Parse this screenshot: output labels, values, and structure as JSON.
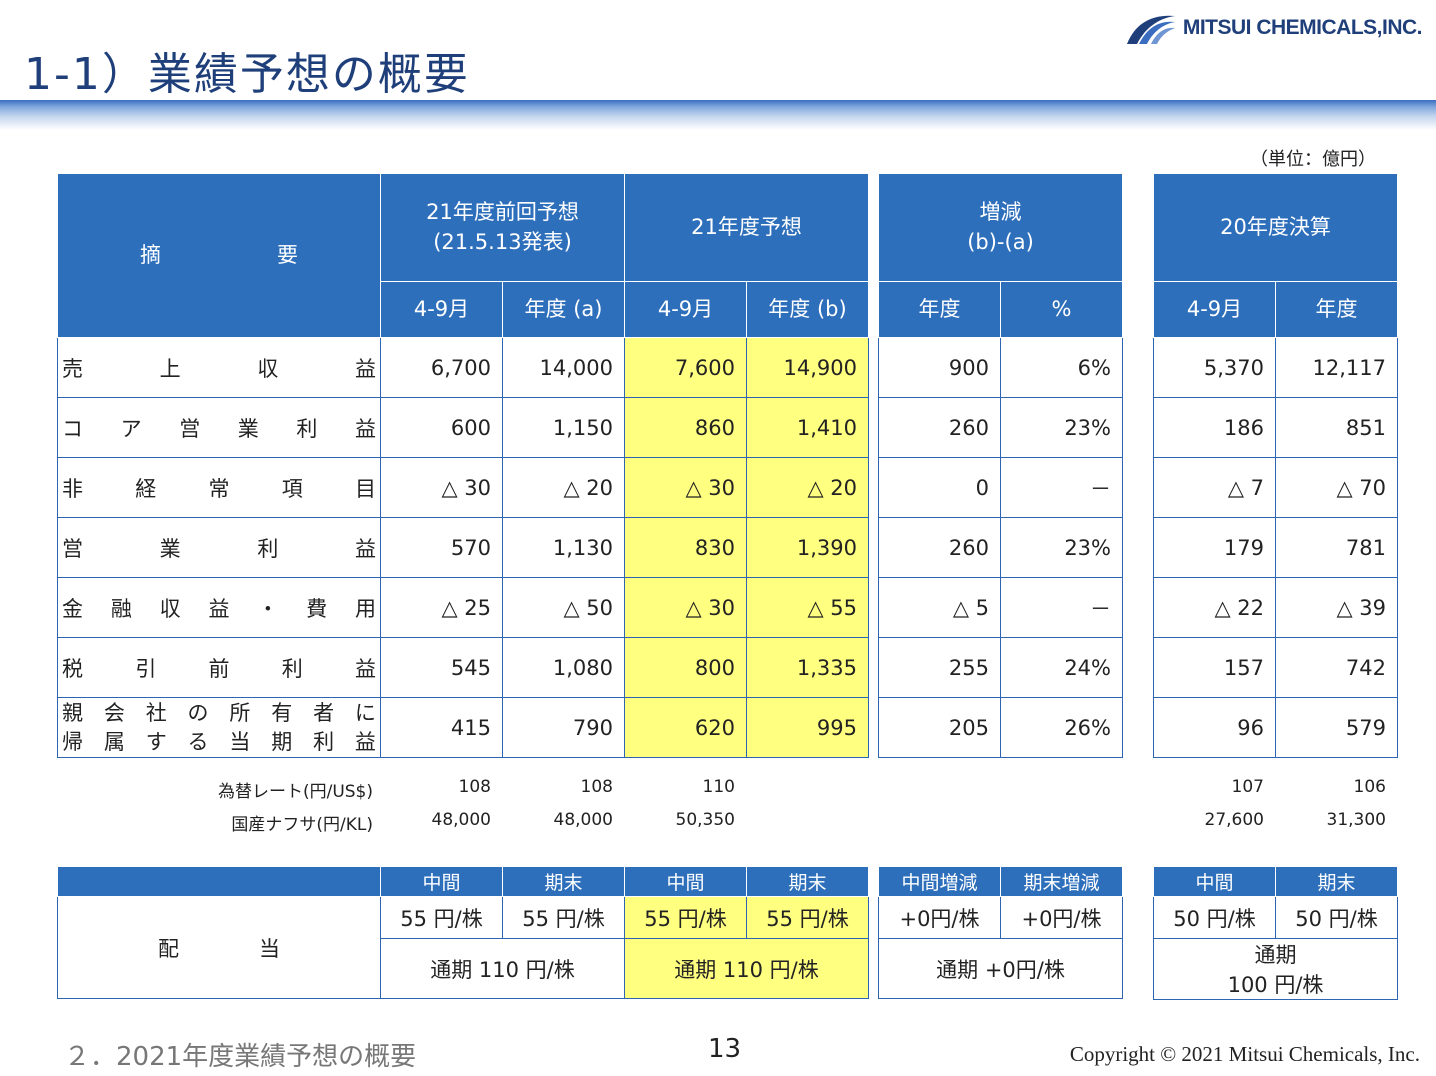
{
  "header": {
    "title": "1-1）業績予想の概要",
    "company": "MITSUI CHEMICALS,INC.",
    "unit": "（単位：億円）"
  },
  "main_table": {
    "col_item": [
      "摘",
      "要"
    ],
    "forecast_prev": "21年度前回予想",
    "forecast_prev_date": "(21.5.13発表)",
    "forecast_now": "21年度予想",
    "change": "増減",
    "change_formula": "(b)-(a)",
    "actual_prev": "20年度決算",
    "sub": [
      "4-9月",
      "年度 (a)",
      "4-9月",
      "年度 (b)",
      "年度",
      "%",
      "4-9月",
      "年度"
    ],
    "rows": [
      {
        "chars": [
          "売",
          "上",
          "収",
          "益"
        ],
        "vals": [
          "6,700",
          "14,000",
          "7,600",
          "14,900",
          "900",
          "6%",
          "5,370",
          "12,117"
        ]
      },
      {
        "chars": [
          "コ",
          "ア",
          "営",
          "業",
          "利",
          "益"
        ],
        "vals": [
          "600",
          "1,150",
          "860",
          "1,410",
          "260",
          "23%",
          "186",
          "851"
        ]
      },
      {
        "chars": [
          "非",
          "経",
          "常",
          "項",
          "目"
        ],
        "vals": [
          "△ 30",
          "△ 20",
          "△ 30",
          "△ 20",
          "0",
          "－",
          "△ 7",
          "△ 70"
        ]
      },
      {
        "chars": [
          "営",
          "業",
          "利",
          "益"
        ],
        "vals": [
          "570",
          "1,130",
          "830",
          "1,390",
          "260",
          "23%",
          "179",
          "781"
        ]
      },
      {
        "chars": [
          "金",
          "融",
          "収",
          "益",
          "・",
          "費",
          "用"
        ],
        "vals": [
          "△ 25",
          "△ 50",
          "△ 30",
          "△ 55",
          "△ 5",
          "－",
          "△ 22",
          "△ 39"
        ]
      },
      {
        "chars": [
          "税",
          "引",
          "前",
          "利",
          "益"
        ],
        "vals": [
          "545",
          "1,080",
          "800",
          "1,335",
          "255",
          "24%",
          "157",
          "742"
        ]
      },
      {
        "line1": [
          "親",
          "会",
          "社",
          "の",
          "所",
          "有",
          "者",
          "に"
        ],
        "line2": [
          "帰",
          "属",
          "す",
          "る",
          "当",
          "期",
          "利",
          "益"
        ],
        "vals": [
          "415",
          "790",
          "620",
          "995",
          "205",
          "26%",
          "96",
          "579"
        ]
      }
    ]
  },
  "fx": {
    "rate_label": "為替レート(円/US$)",
    "naphtha_label": "国産ナフサ(円/KL)",
    "rate": [
      "108",
      "108",
      "110",
      "107",
      "106"
    ],
    "naphtha": [
      "48,000",
      "48,000",
      "50,350",
      "27,600",
      "31,300"
    ]
  },
  "dividend": {
    "label": [
      "配",
      "当"
    ],
    "heads": [
      "中間",
      "期末",
      "中間",
      "期末",
      "中間増減",
      "期末増減",
      "中間",
      "期末"
    ],
    "vals": [
      "55 円/株",
      "55 円/株",
      "55 円/株",
      "55 円/株",
      "+0円/株",
      "+0円/株",
      "50 円/株",
      "50 円/株"
    ],
    "annual_prev": "通期 110 円/株",
    "annual_now": "通期 110 円/株",
    "annual_change": "通期 +0円/株",
    "annual_actual_1": "通期",
    "annual_actual_2": "100 円/株"
  },
  "footer": {
    "section": "２．2021年度業績予想の概要",
    "page": "13",
    "copyright": "Copyright © 2021 Mitsui Chemicals, Inc."
  },
  "colors": {
    "header_blue": "#2e6fbc",
    "highlight": "#ffff80",
    "title": "#1f3f7a"
  }
}
